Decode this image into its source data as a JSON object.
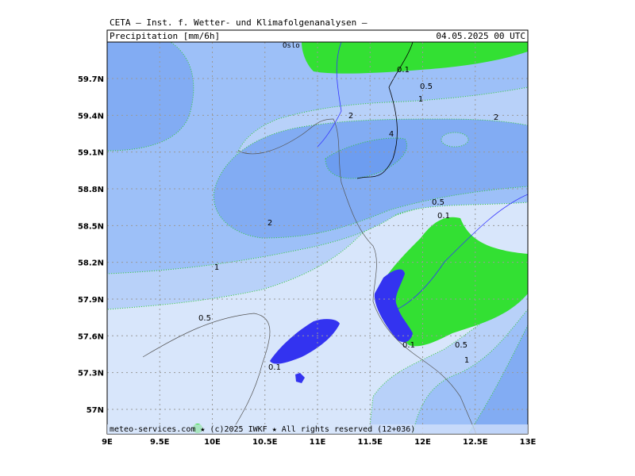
{
  "header": {
    "title": "CETA – Inst. f. Wetter- und Klimafolgenanalysen –",
    "field": "Precipitation [mm/6h]",
    "valid_time": "04.05.2025 00 UTC"
  },
  "axes": {
    "y_labels": [
      "59.7N",
      "59.4N",
      "59.1N",
      "58.8N",
      "58.5N",
      "58.2N",
      "57.9N",
      "57.6N",
      "57.3N",
      "57N"
    ],
    "x_labels": [
      "9E",
      "9.5E",
      "10E",
      "10.5E",
      "11E",
      "11.5E",
      "12E",
      "12.5E",
      "13E"
    ]
  },
  "places": [
    "Oslo"
  ],
  "contour_labels": [
    "0.1",
    "0.5",
    "1",
    "2",
    "2",
    "4",
    "0.5",
    "0.1",
    "2",
    "1",
    "0.5",
    "0.1",
    "0.5",
    "1",
    "0.1"
  ],
  "footer": "meteo-services.com ★ (c)2025 IWKF ★ All rights reserved (12+036)"
}
